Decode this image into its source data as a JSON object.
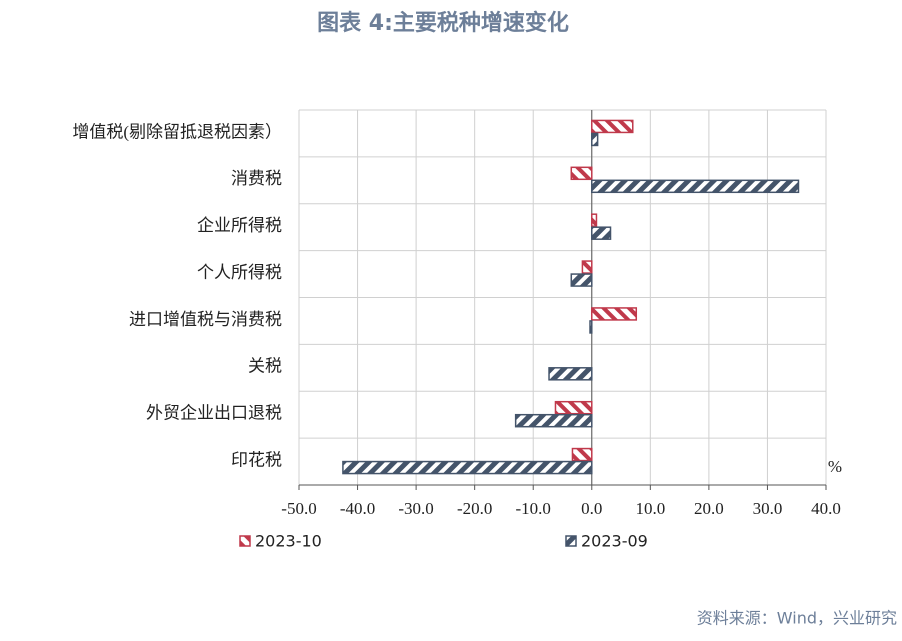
{
  "chart_data": {
    "type": "hbar",
    "title": "图表 4:主要税种增速变化",
    "categories": [
      "增值税(剔除留抵退税因素）",
      "消费税",
      "企业所得税",
      "个人所得税",
      "进口增值税与消费税",
      "关税",
      "外贸企业出口退税",
      "印花税"
    ],
    "series": [
      {
        "name": "2023-10",
        "color": "#c0394b",
        "values": [
          7.0,
          -3.5,
          0.8,
          -1.6,
          7.6,
          0,
          -6.2,
          -3.3
        ]
      },
      {
        "name": "2023-09",
        "color": "#44546a",
        "values": [
          1.0,
          35.3,
          3.2,
          -3.5,
          -0.3,
          -7.3,
          -13.0,
          -42.5
        ]
      }
    ],
    "xlim": [
      -50,
      40
    ],
    "xticks": [
      {
        "value": -50,
        "label": "-50.0"
      },
      {
        "value": -40,
        "label": "-40.0"
      },
      {
        "value": -30,
        "label": "-30.0"
      },
      {
        "value": -20,
        "label": "-20.0"
      },
      {
        "value": -10,
        "label": "-10.0"
      },
      {
        "value": 0,
        "label": "0.0"
      },
      {
        "value": 10,
        "label": "10.0"
      },
      {
        "value": 20,
        "label": "20.0"
      },
      {
        "value": 30,
        "label": "30.0"
      },
      {
        "value": 40,
        "label": "40.0"
      }
    ],
    "unit": "%",
    "grid": true,
    "legend": "bottom",
    "source": "资料来源：Wind，兴业研究"
  }
}
